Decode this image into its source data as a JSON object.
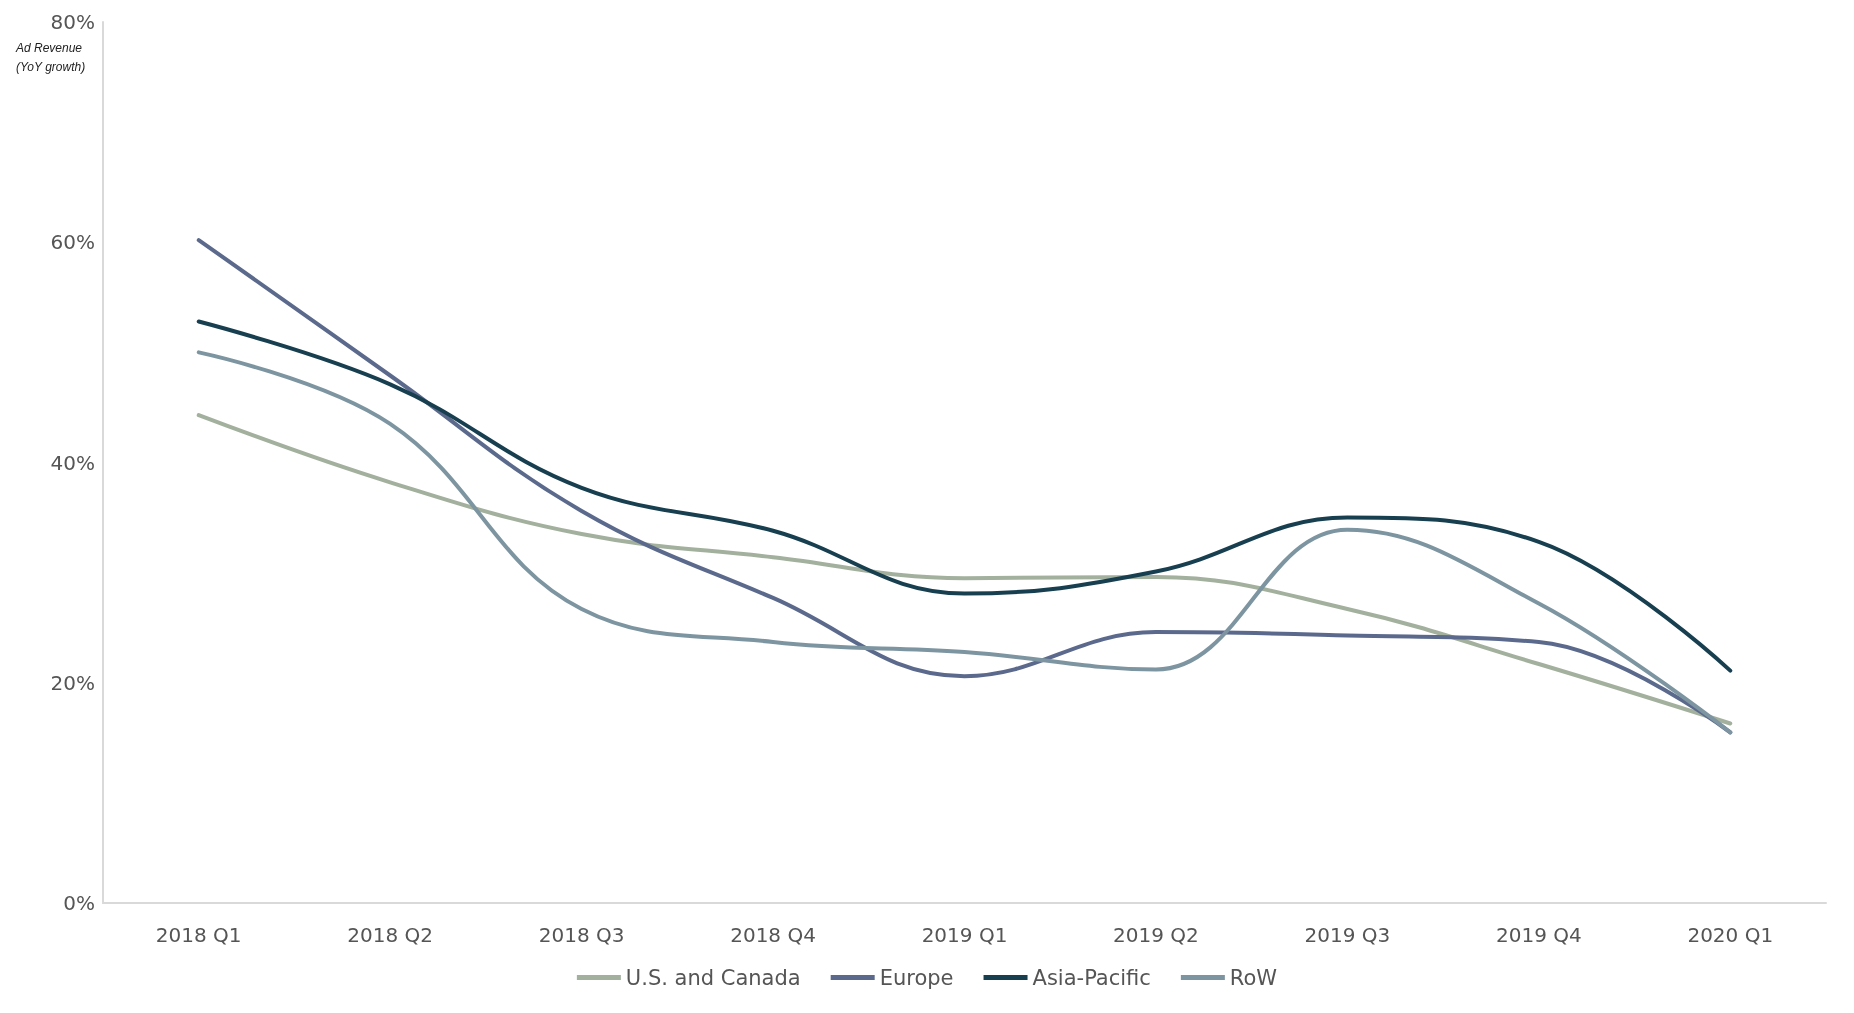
{
  "chart_data": {
    "type": "line",
    "ylabel": "Ad Revenue (YoY growth)",
    "categories": [
      "2018 Q1",
      "2018 Q2",
      "2018 Q3",
      "2018 Q4",
      "2019 Q1",
      "2019 Q2",
      "2019 Q3",
      "2019 Q4",
      "2020 Q1"
    ],
    "series": [
      {
        "name": "U.S. and Canada",
        "color": "#a3b09e",
        "values": [
          44.3,
          38.2,
          33.5,
          31.4,
          29.5,
          29.6,
          26.7,
          21.7,
          16.3
        ]
      },
      {
        "name": "Europe",
        "color": "#5b6a8c",
        "values": [
          60.2,
          47.9,
          35.6,
          27.7,
          20.6,
          24.6,
          24.3,
          23.7,
          15.5
        ]
      },
      {
        "name": "Asia-Pacific",
        "color": "#173f4f",
        "values": [
          52.8,
          47.1,
          37.7,
          33.8,
          28.1,
          30.1,
          35.0,
          32.8,
          21.1
        ]
      },
      {
        "name": "RoW",
        "color": "#7d95a0",
        "values": [
          50.0,
          43.5,
          26.7,
          23.7,
          22.8,
          21.2,
          33.9,
          27.2,
          15.5
        ]
      }
    ],
    "ylim": [
      0,
      80
    ],
    "yticks": [
      {
        "value": 0,
        "label": "0%"
      },
      {
        "value": 20,
        "label": "20%"
      },
      {
        "value": 40,
        "label": "40%"
      },
      {
        "value": 60,
        "label": "60%"
      },
      {
        "value": 80,
        "label": "80%"
      }
    ],
    "grid": false,
    "legend": "bottom",
    "marker": "none",
    "line_style": "solid"
  }
}
